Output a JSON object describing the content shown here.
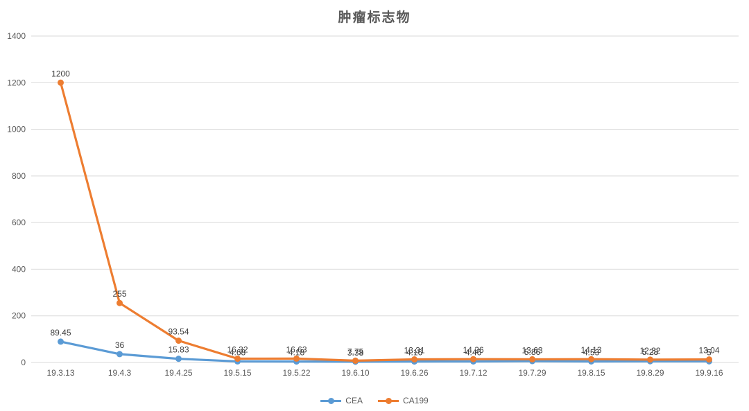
{
  "chart_data": {
    "type": "line",
    "title": "肿瘤标志物",
    "categories": [
      "19.3.13",
      "19.4.3",
      "19.4.25",
      "19.5.15",
      "19.5.22",
      "19.6.10",
      "19.6.26",
      "19.7.12",
      "19.7.29",
      "19.8.15",
      "19.8.29",
      "19.9.16"
    ],
    "series": [
      {
        "name": "CEA",
        "color": "#5B9BD5",
        "values": [
          89.45,
          36,
          15.83,
          4.68,
          4.18,
          3.38,
          4.16,
          4.46,
          5.86,
          4.53,
          5.28,
          5
        ]
      },
      {
        "name": "CA199",
        "color": "#ED7D31",
        "values": [
          1200,
          255,
          93.54,
          16.32,
          16.63,
          7.75,
          13.31,
          14.26,
          13.63,
          14.13,
          12.32,
          13.04
        ]
      }
    ],
    "y_axis": {
      "min": 0,
      "max": 1400,
      "step": 200,
      "tick_labels": [
        "0",
        "200",
        "400",
        "600",
        "800",
        "1000",
        "1200",
        "1400"
      ]
    },
    "grid": true,
    "data_labels": true,
    "legend_position": "bottom"
  },
  "colors": {
    "background": "#FFFFFF",
    "gridline": "#D9D9D9",
    "axis_text": "#595959",
    "data_label_text": "#404040",
    "title_text": "#595959"
  }
}
